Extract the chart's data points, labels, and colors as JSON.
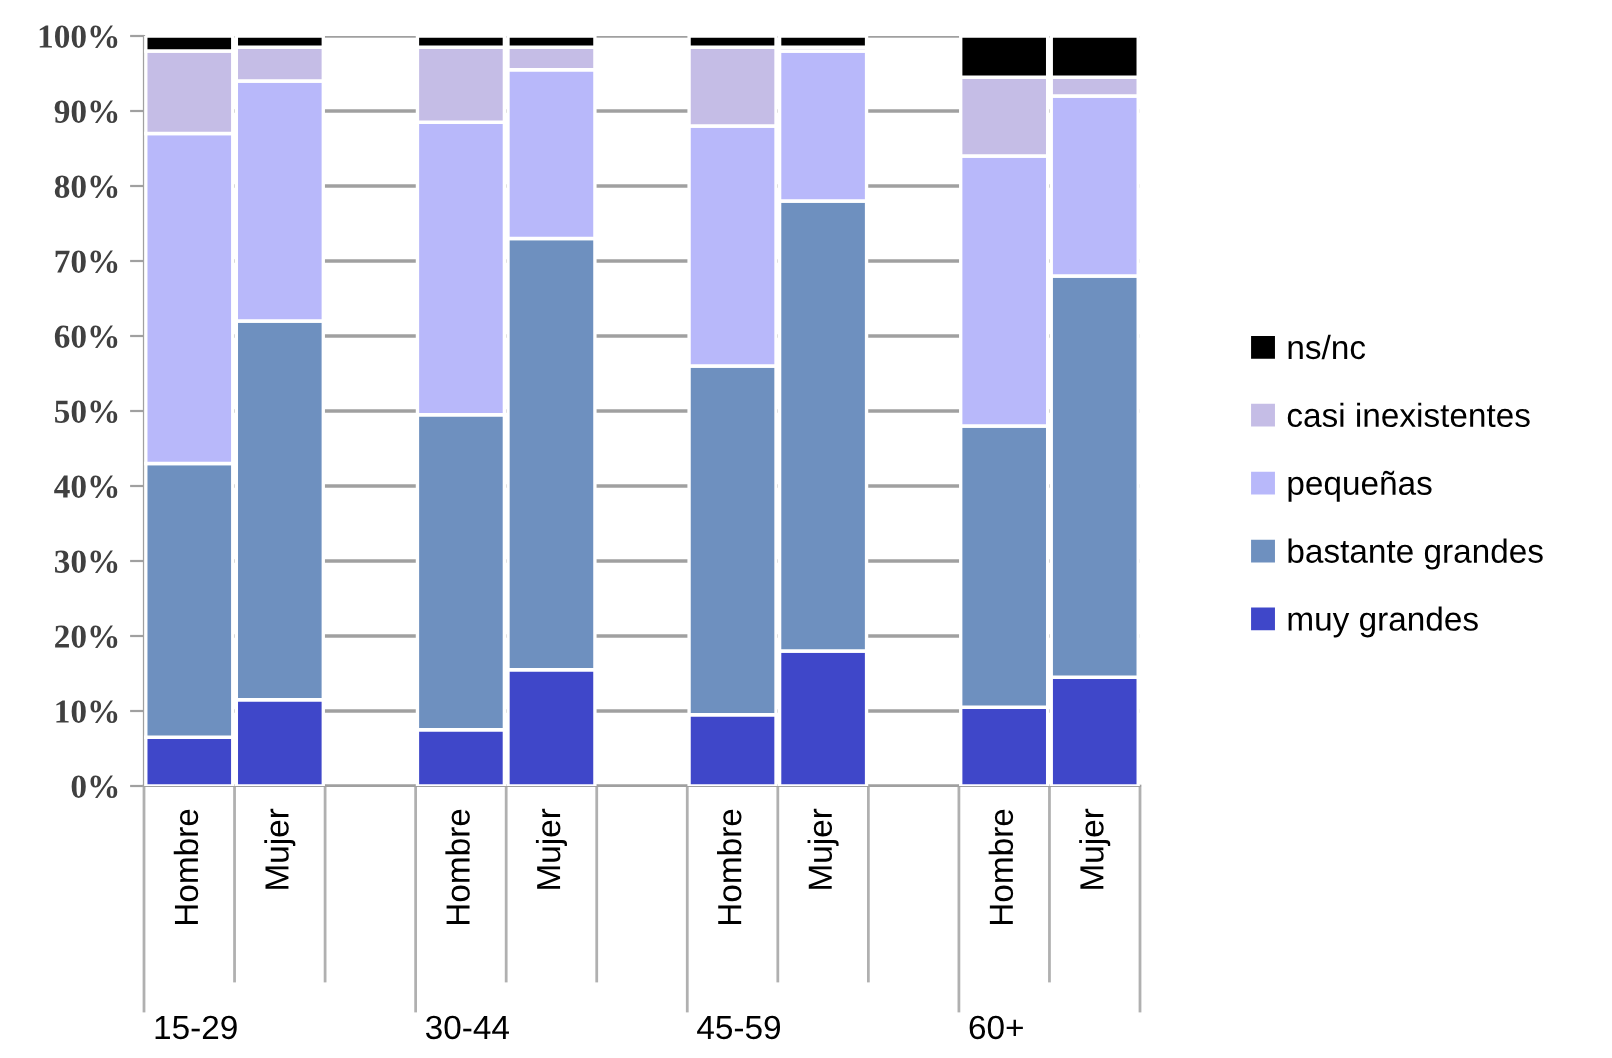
{
  "chart_data": {
    "type": "bar",
    "stacked": true,
    "categories": [
      "Hombre",
      "Mujer",
      null,
      "Hombre",
      "Mujer",
      null,
      "Hombre",
      "Mujer",
      null,
      "Hombre",
      "Mujer"
    ],
    "series": [
      {
        "name": "muy grandes",
        "color": "#3f47c9",
        "values": [
          6.5,
          11.5,
          null,
          7.5,
          15.5,
          null,
          9.5,
          18,
          null,
          10.5,
          14.5
        ]
      },
      {
        "name": "bastante grandes",
        "color": "#6e90bf",
        "values": [
          36.5,
          50.5,
          null,
          42,
          57.5,
          null,
          46.5,
          60,
          null,
          37.5,
          53.5
        ]
      },
      {
        "name": "pequeñas",
        "color": "#b8b8fa",
        "values": [
          44,
          32,
          null,
          39,
          22.5,
          null,
          32,
          20,
          null,
          36,
          24
        ]
      },
      {
        "name": "casi inexistentes",
        "color": "#c5bde6",
        "values": [
          11,
          4.5,
          null,
          10,
          3,
          null,
          10.5,
          0.5,
          null,
          10.5,
          2.5
        ]
      },
      {
        "name": "ns/nc",
        "color": "#000000",
        "values": [
          2,
          1.5,
          null,
          1.5,
          1.5,
          null,
          1.5,
          1.5,
          null,
          5.5,
          5.5
        ]
      }
    ],
    "ylim": [
      0,
      100
    ],
    "yticks": [
      {
        "value": 0,
        "label": "0%"
      },
      {
        "value": 10,
        "label": "10%"
      },
      {
        "value": 20,
        "label": "20%"
      },
      {
        "value": 30,
        "label": "30%"
      },
      {
        "value": 40,
        "label": "40%"
      },
      {
        "value": 50,
        "label": "50%"
      },
      {
        "value": 60,
        "label": "60%"
      },
      {
        "value": 70,
        "label": "70%"
      },
      {
        "value": 80,
        "label": "80%"
      },
      {
        "value": 90,
        "label": "90%"
      },
      {
        "value": 100,
        "label": "100%"
      }
    ],
    "grid": "y",
    "legend": "right",
    "annotations": [
      "15-29",
      "30-44",
      "45-59",
      "60+"
    ]
  }
}
